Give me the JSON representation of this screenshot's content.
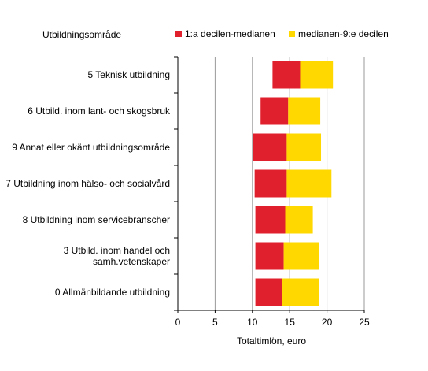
{
  "chart_data": {
    "type": "bar",
    "orientation": "horizontal",
    "stacked": true,
    "title": "",
    "category_axis_title": "Utbildningsområde",
    "xlabel": "Totaltimlön, euro",
    "xlim": [
      0,
      25
    ],
    "xticks": [
      "0",
      "5",
      "10",
      "15",
      "20",
      "25"
    ],
    "grid": "vertical",
    "legend_position": "top",
    "categories": [
      [
        "5 Teknisk utbildning"
      ],
      [
        "6 Utbild. inom lant- och skogsbruk"
      ],
      [
        "9 Annat eller okänt utbildningsområde"
      ],
      [
        "7 Utbildning inom hälso- och socialvård"
      ],
      [
        "8 Utbildning inom servicebranscher"
      ],
      [
        "3 Utbild. inom handel och",
        "samh.vetenskaper"
      ],
      [
        "0 Allmänbildande utbildning"
      ]
    ],
    "series": [
      {
        "name": "1:a decilen-medianen",
        "color": "#e0202c",
        "ranges": [
          [
            12.7,
            16.4
          ],
          [
            11.1,
            14.8
          ],
          [
            10.1,
            14.6
          ],
          [
            10.3,
            14.6
          ],
          [
            10.4,
            14.4
          ],
          [
            10.4,
            14.2
          ],
          [
            10.4,
            14.0
          ]
        ]
      },
      {
        "name": "medianen-9:e decilen",
        "color": "#ffd800",
        "ranges": [
          [
            16.4,
            20.8
          ],
          [
            14.8,
            19.1
          ],
          [
            14.6,
            19.2
          ],
          [
            14.6,
            20.6
          ],
          [
            14.4,
            18.1
          ],
          [
            14.2,
            18.9
          ],
          [
            14.0,
            18.9
          ]
        ]
      }
    ]
  }
}
